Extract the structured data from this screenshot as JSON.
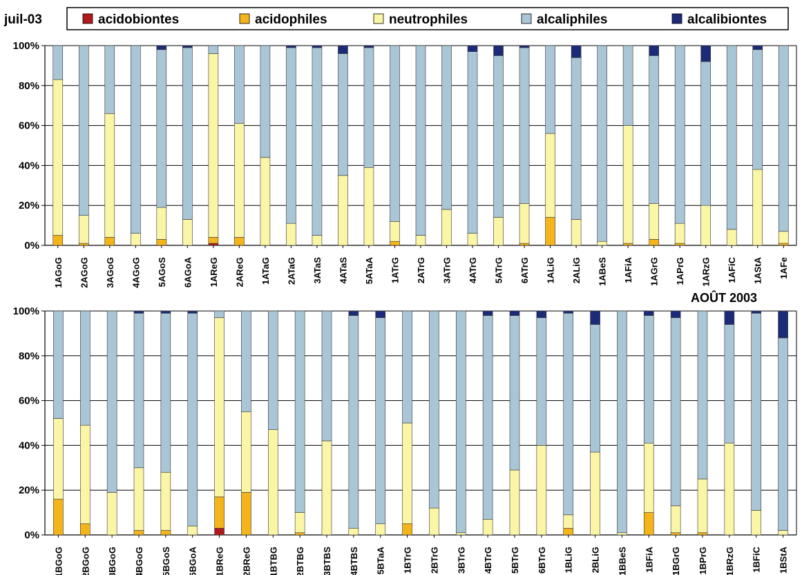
{
  "chart_data": [
    {
      "type": "bar",
      "stacked": "percent",
      "title": "juil-03",
      "ylim": [
        0,
        100
      ],
      "yticks": [
        "0%",
        "20%",
        "40%",
        "60%",
        "80%",
        "100%"
      ],
      "grid": true,
      "legend": "top",
      "categories": [
        "1AGoG",
        "2AGoG",
        "3AGoG",
        "4AGoG",
        "5AGoS",
        "6AGoA",
        "1AReG",
        "2AReG",
        "1ATaG",
        "2ATaG",
        "3ATaS",
        "4ATaS",
        "5ATaA",
        "1ATrG",
        "2ATrG",
        "3ATrG",
        "4ATrG",
        "5ATrG",
        "6ATrG",
        "1ALiG",
        "2ALiG",
        "1ABeS",
        "1AFiA",
        "1AGrG",
        "1APrG",
        "1ARzG",
        "1AFiC",
        "1AStA",
        "1AFe"
      ],
      "series": [
        {
          "name": "acidobiontes",
          "values": [
            0,
            0,
            0,
            0,
            0,
            0,
            1,
            0,
            0,
            0,
            0,
            0,
            0,
            0,
            0,
            0,
            0,
            0,
            0,
            0,
            0,
            0,
            0,
            0,
            0,
            0,
            0,
            0,
            0
          ]
        },
        {
          "name": "acidophiles",
          "values": [
            5,
            1,
            4,
            0,
            3,
            0,
            3,
            4,
            0,
            0,
            0,
            0,
            0,
            2,
            0,
            0,
            0,
            0,
            1,
            14,
            0,
            0,
            1,
            3,
            1,
            0,
            0,
            0,
            1
          ]
        },
        {
          "name": "neutrophiles",
          "values": [
            78,
            14,
            62,
            6,
            16,
            13,
            92,
            57,
            44,
            11,
            5,
            35,
            39,
            10,
            5,
            18,
            6,
            14,
            20,
            42,
            13,
            2,
            59,
            18,
            10,
            20,
            8,
            38,
            6
          ]
        },
        {
          "name": "alcaliphiles",
          "values": [
            17,
            85,
            34,
            94,
            79,
            86,
            4,
            39,
            56,
            88,
            94,
            61,
            60,
            88,
            95,
            82,
            91,
            81,
            78,
            44,
            81,
            98,
            40,
            74,
            89,
            72,
            92,
            60,
            93
          ]
        },
        {
          "name": "alcalibiontes",
          "values": [
            0,
            0,
            0,
            0,
            2,
            1,
            0,
            0,
            0,
            1,
            1,
            4,
            1,
            0,
            0,
            0,
            3,
            5,
            1,
            0,
            6,
            0,
            0,
            5,
            0,
            8,
            0,
            2,
            0
          ]
        }
      ]
    },
    {
      "type": "bar",
      "stacked": "percent",
      "title": "AOÛT 2003",
      "ylim": [
        0,
        100
      ],
      "yticks": [
        "0%",
        "20%",
        "40%",
        "60%",
        "80%",
        "100%"
      ],
      "grid": true,
      "categories": [
        "1BGoG",
        "2BGoG",
        "3BGoG",
        "4BGoG",
        "5BGoS",
        "6BGoA",
        "1BReG",
        "2BReG",
        "1BTBG",
        "2BTBG",
        "3BTBS",
        "4BTBS",
        "5BTaA",
        "1BTrG",
        "2BTrG",
        "3BTrG",
        "4BTrG",
        "5BTrG",
        "6BTrG",
        "1BLiG",
        "2BLiG",
        "1BBeS",
        "1BFiA",
        "1BGrG",
        "1BPrG",
        "1BRzG",
        "1BFiC",
        "1BStA"
      ],
      "series": [
        {
          "name": "acidobiontes",
          "values": [
            0,
            0,
            0,
            0,
            0,
            0,
            3,
            0,
            0,
            0,
            0,
            0,
            0,
            0,
            0,
            0,
            0,
            0,
            0,
            0,
            0,
            0,
            0,
            0,
            0,
            0,
            0,
            0
          ]
        },
        {
          "name": "acidophiles",
          "values": [
            16,
            5,
            0,
            2,
            2,
            0,
            14,
            19,
            0,
            1,
            0,
            0,
            0,
            5,
            0,
            0,
            0,
            0,
            0,
            3,
            0,
            0,
            10,
            1,
            1,
            0,
            0,
            0
          ]
        },
        {
          "name": "neutrophiles",
          "values": [
            36,
            44,
            19,
            28,
            26,
            4,
            80,
            36,
            47,
            9,
            42,
            3,
            5,
            45,
            12,
            1,
            7,
            29,
            40,
            6,
            37,
            1,
            31,
            12,
            24,
            41,
            11,
            2
          ]
        },
        {
          "name": "alcaliphiles",
          "values": [
            48,
            51,
            81,
            69,
            71,
            95,
            3,
            45,
            53,
            90,
            58,
            95,
            92,
            50,
            88,
            99,
            91,
            69,
            57,
            90,
            57,
            99,
            57,
            84,
            75,
            53,
            88,
            86
          ]
        },
        {
          "name": "alcalibiontes",
          "values": [
            0,
            0,
            0,
            1,
            1,
            1,
            0,
            0,
            0,
            0,
            0,
            2,
            3,
            0,
            0,
            0,
            2,
            2,
            3,
            1,
            6,
            0,
            2,
            3,
            0,
            6,
            1,
            12
          ]
        }
      ]
    }
  ],
  "colors": {
    "acidobiontes": "#b0191e",
    "acidophiles": "#f4b41a",
    "neutrophiles": "#fbf5a6",
    "alcaliphiles": "#a9c6d6",
    "alcalibiontes": "#1c2a78"
  },
  "legend": {
    "items": [
      {
        "key": "acidobiontes",
        "label": "acidobiontes"
      },
      {
        "key": "acidophiles",
        "label": "acidophiles"
      },
      {
        "key": "neutrophiles",
        "label": "neutrophiles"
      },
      {
        "key": "alcaliphiles",
        "label": "alcaliphiles"
      },
      {
        "key": "alcalibiontes",
        "label": "alcalibiontes"
      }
    ]
  }
}
